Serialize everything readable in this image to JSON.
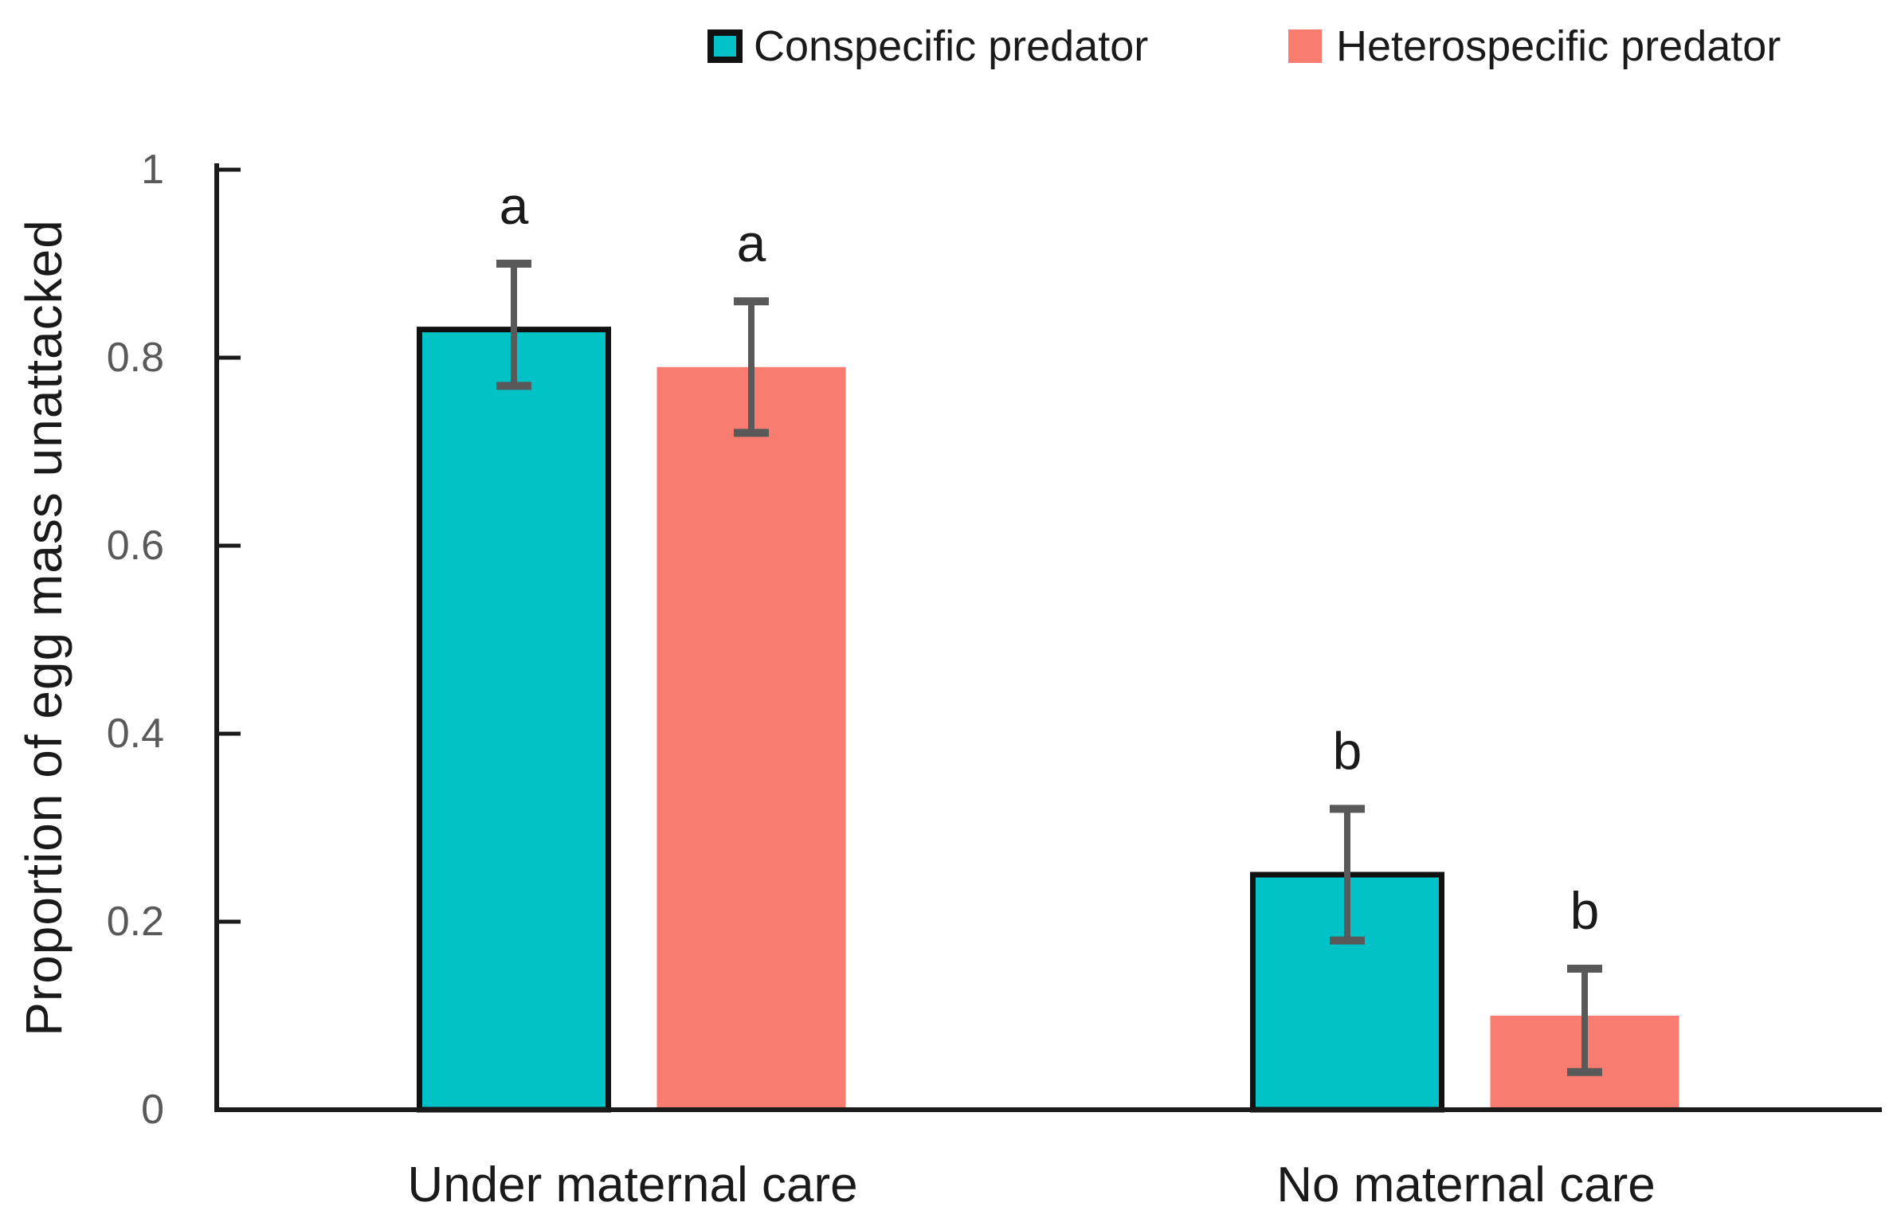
{
  "chart_data": {
    "type": "bar",
    "title": "",
    "xlabel": "",
    "ylabel": "Proportion of egg mass unattacked",
    "categories": [
      "Under maternal care",
      "No maternal care"
    ],
    "series": [
      {
        "name": "Conspecific predator",
        "color": "#00c2c7",
        "border_color": "#111111",
        "values": [
          0.83,
          0.25
        ],
        "error_low": [
          0.77,
          0.18
        ],
        "error_high": [
          0.9,
          0.32
        ],
        "letters": [
          "a",
          "b"
        ]
      },
      {
        "name": "Heterospecific predator",
        "color": "#f97c70",
        "border_color": null,
        "values": [
          0.79,
          0.1
        ],
        "error_low": [
          0.72,
          0.04
        ],
        "error_high": [
          0.86,
          0.15
        ],
        "letters": [
          "a",
          "b"
        ]
      }
    ],
    "ylim": [
      0,
      1
    ],
    "yticks": [
      0,
      0.2,
      0.4,
      0.6,
      0.8,
      1
    ],
    "ytick_labels": [
      "0",
      "0.2",
      "0.4",
      "0.6",
      "0.8",
      "1"
    ],
    "grid": false,
    "legend_position": "top",
    "colors": {
      "error_bar": "#595959",
      "axis": "#1a1a1a",
      "tick_label": "#595959",
      "text": "#1a1a1a"
    }
  }
}
